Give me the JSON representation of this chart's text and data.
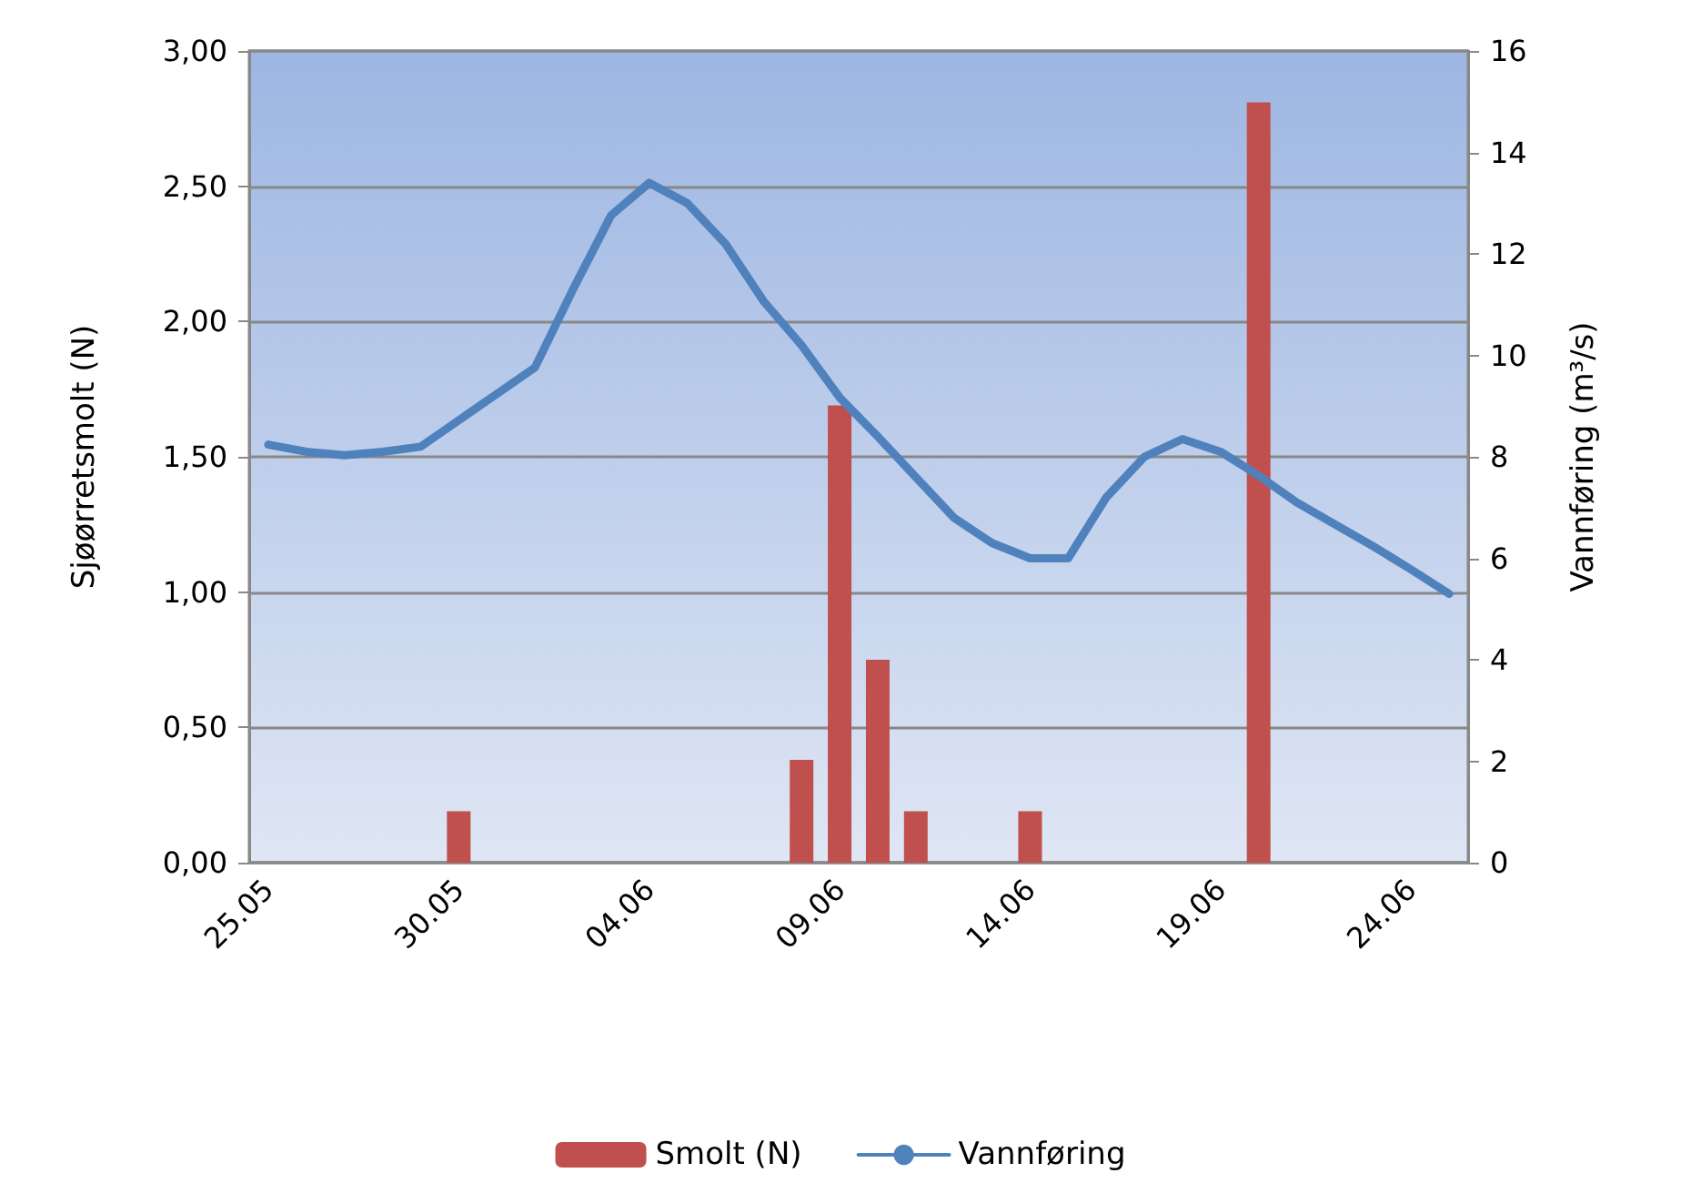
{
  "chart_data": {
    "type": "bar",
    "ylabel": "Sjøørretsmolt (N)",
    "y2label": "Vannføring (m³/s)",
    "categories": [
      "25.05",
      null,
      null,
      null,
      null,
      "30.05",
      null,
      null,
      null,
      null,
      "04.06",
      null,
      null,
      null,
      null,
      "09.06",
      null,
      null,
      null,
      null,
      "14.06",
      null,
      null,
      null,
      null,
      "19.06",
      null,
      null,
      null,
      null,
      "24.06",
      null
    ],
    "series": [
      {
        "name": "Smolt (N)",
        "color": "#c0504d",
        "values": [
          0,
          0,
          0,
          0,
          0,
          0.19,
          0,
          0,
          0,
          0,
          0,
          0,
          0,
          0,
          0.38,
          1.69,
          0.75,
          0.19,
          0,
          0,
          0.19,
          0,
          0,
          0,
          0,
          0,
          2.81,
          0,
          0,
          0,
          0,
          0
        ]
      },
      {
        "name": "Vannføring",
        "type": "line",
        "axis": "y2",
        "color": "#4f81bd",
        "values": [
          8.24,
          8.1,
          8.03,
          8.1,
          8.2,
          8.72,
          9.24,
          9.76,
          11.3,
          12.76,
          13.4,
          13.0,
          12.2,
          11.07,
          10.2,
          9.17,
          8.4,
          7.6,
          6.8,
          6.3,
          6.0,
          6.0,
          7.2,
          8.0,
          8.35,
          8.1,
          7.63,
          7.1,
          6.67,
          6.24,
          5.78,
          5.3
        ]
      }
    ],
    "ylim": [
      0,
      3
    ],
    "yticks": [
      {
        "value": 0,
        "label": "0,00"
      },
      {
        "value": 0.5,
        "label": "0,50"
      },
      {
        "value": 1,
        "label": "1,00"
      },
      {
        "value": 1.5,
        "label": "1,50"
      },
      {
        "value": 2,
        "label": "2,00"
      },
      {
        "value": 2.5,
        "label": "2,50"
      },
      {
        "value": 3,
        "label": "3,00"
      }
    ],
    "y2lim": [
      0,
      16
    ],
    "y2ticks": [
      0,
      2,
      4,
      6,
      8,
      10,
      12,
      14,
      16
    ],
    "grid": "y",
    "legend": "bottom",
    "line_style": "solid"
  }
}
